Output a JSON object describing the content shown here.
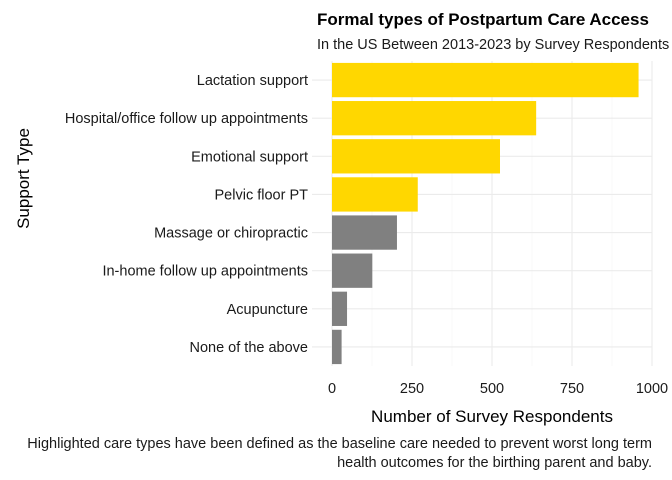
{
  "chart_data": {
    "type": "bar",
    "orientation": "horizontal",
    "title": "Formal types of Postpartum Care Access",
    "subtitle": "In the US Between 2013-2023 by Survey Respondents",
    "xlabel": "Number of Survey Respondents",
    "ylabel": "Support Type",
    "caption_lines": [
      "Highlighted care types have been defined as the baseline care needed to prevent worst long term",
      "health outcomes for the birthing parent and baby."
    ],
    "categories": [
      "Lactation support",
      "Hospital/office follow up appointments",
      "Emotional support",
      "Pelvic floor PT",
      "Massage or chiropractic",
      "In-home follow up appointments",
      "Acupuncture",
      "None of the above"
    ],
    "values": [
      958,
      638,
      525,
      268,
      203,
      126,
      47,
      30
    ],
    "highlighted": [
      true,
      true,
      true,
      true,
      false,
      false,
      false,
      false
    ],
    "colors": {
      "highlight": "#FFD700",
      "other": "#808080"
    },
    "xlim": [
      0,
      1000
    ],
    "xticks": [
      "0",
      "250",
      "500",
      "750",
      "1000"
    ],
    "grid": true
  }
}
